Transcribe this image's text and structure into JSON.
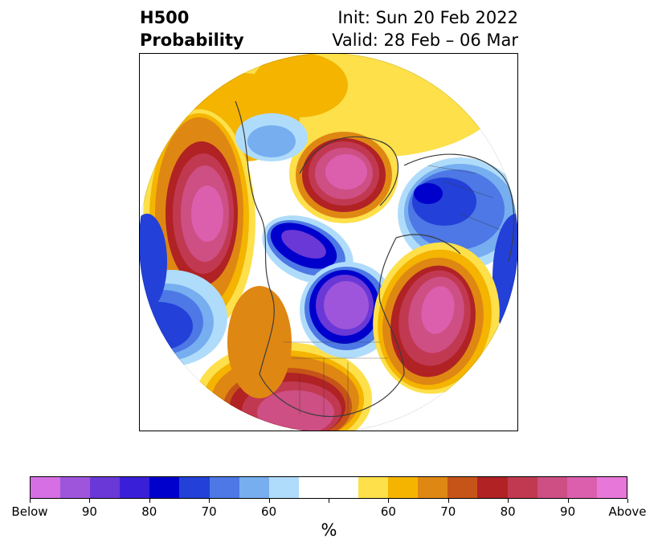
{
  "title": {
    "line1": "H500",
    "line2": "Probability",
    "init": "Init: Sun 20 Feb 2022",
    "valid": "Valid: 28 Feb – 06 Mar"
  },
  "colorbar": {
    "colors": [
      "#d56fe3",
      "#9e55dc",
      "#6a38d6",
      "#3a1fd8",
      "#0000cd",
      "#2340d8",
      "#4d78e5",
      "#76aef0",
      "#b0dcfb",
      "#ffffff",
      "#ffffff",
      "#fde04a",
      "#f4b400",
      "#df8713",
      "#c65418",
      "#b02224",
      "#c13951",
      "#cd4f84",
      "#dc5fae",
      "#e877da"
    ],
    "labels": [
      "Below",
      "90",
      "80",
      "70",
      "60",
      "",
      "60",
      "70",
      "80",
      "90",
      "Above"
    ],
    "unit": "%"
  },
  "map": {
    "projection": "polar stereographic",
    "palette": {
      "above1": "#fde04a",
      "above2": "#f4b400",
      "above3": "#df8713",
      "above4": "#c65418",
      "above5": "#b02224",
      "above6": "#c13951",
      "above7": "#cd4f84",
      "above8": "#dc5fae",
      "above9": "#e877da",
      "below1": "#b0dcfb",
      "below2": "#76aef0",
      "below3": "#4d78e5",
      "below4": "#2340d8",
      "below5": "#0000cd",
      "below6": "#3a1fd8",
      "below7": "#6a38d6",
      "below8": "#9e55dc"
    }
  }
}
